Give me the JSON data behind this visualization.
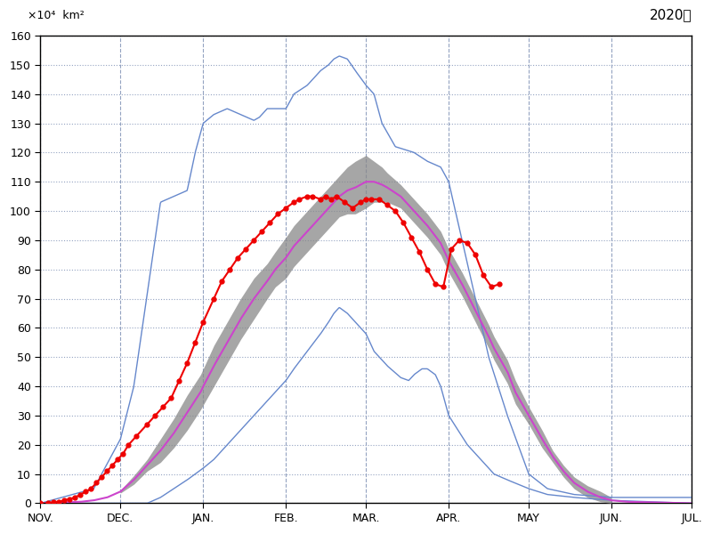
{
  "title_year": "2020年",
  "yticks": [
    0,
    10,
    20,
    30,
    40,
    50,
    60,
    70,
    80,
    90,
    100,
    110,
    120,
    130,
    140,
    150,
    160
  ],
  "ylim": [
    0,
    160
  ],
  "month_labels": [
    "NOV.",
    "DEC.",
    "JAN.",
    "FEB.",
    "MAR.",
    "APR.",
    "MAY",
    "JUN.",
    "JUL."
  ],
  "month_positions": [
    0,
    30,
    61,
    92,
    122,
    153,
    183,
    214,
    244
  ],
  "background_color": "#ffffff",
  "grid_color": "#8899bb",
  "blue_line_color": "#6688cc",
  "purple_line_color": "#cc44cc",
  "gray_fill_color": "#888888",
  "red_line_color": "#ee0000",
  "unit_label": "×10⁴  km²"
}
